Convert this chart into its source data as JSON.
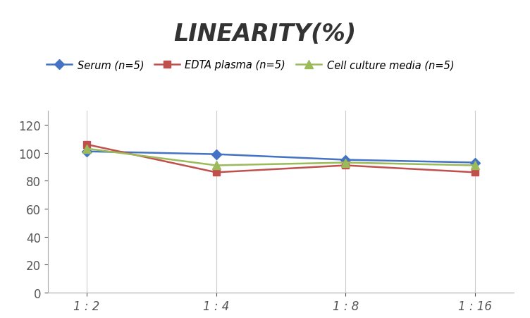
{
  "title": "LINEARITY(%)",
  "x_labels": [
    "1 : 2",
    "1 : 4",
    "1 : 8",
    "1 : 16"
  ],
  "x_positions": [
    0,
    1,
    2,
    3
  ],
  "series": [
    {
      "label": "Serum (n=5)",
      "values": [
        101,
        99,
        95,
        93
      ],
      "color": "#4472C4",
      "marker": "D",
      "markersize": 7,
      "linewidth": 1.8
    },
    {
      "label": "EDTA plasma (n=5)",
      "values": [
        106,
        86,
        91,
        86
      ],
      "color": "#C0504D",
      "marker": "s",
      "markersize": 7,
      "linewidth": 1.8
    },
    {
      "label": "Cell culture media (n=5)",
      "values": [
        103,
        91,
        93,
        91
      ],
      "color": "#9BBB59",
      "marker": "^",
      "markersize": 8,
      "linewidth": 1.8
    }
  ],
  "ylim": [
    0,
    130
  ],
  "yticks": [
    0,
    20,
    40,
    60,
    80,
    100,
    120
  ],
  "background_color": "#FFFFFF",
  "grid_color": "#CCCCCC",
  "title_fontsize": 24,
  "legend_fontsize": 10.5,
  "tick_fontsize": 12
}
